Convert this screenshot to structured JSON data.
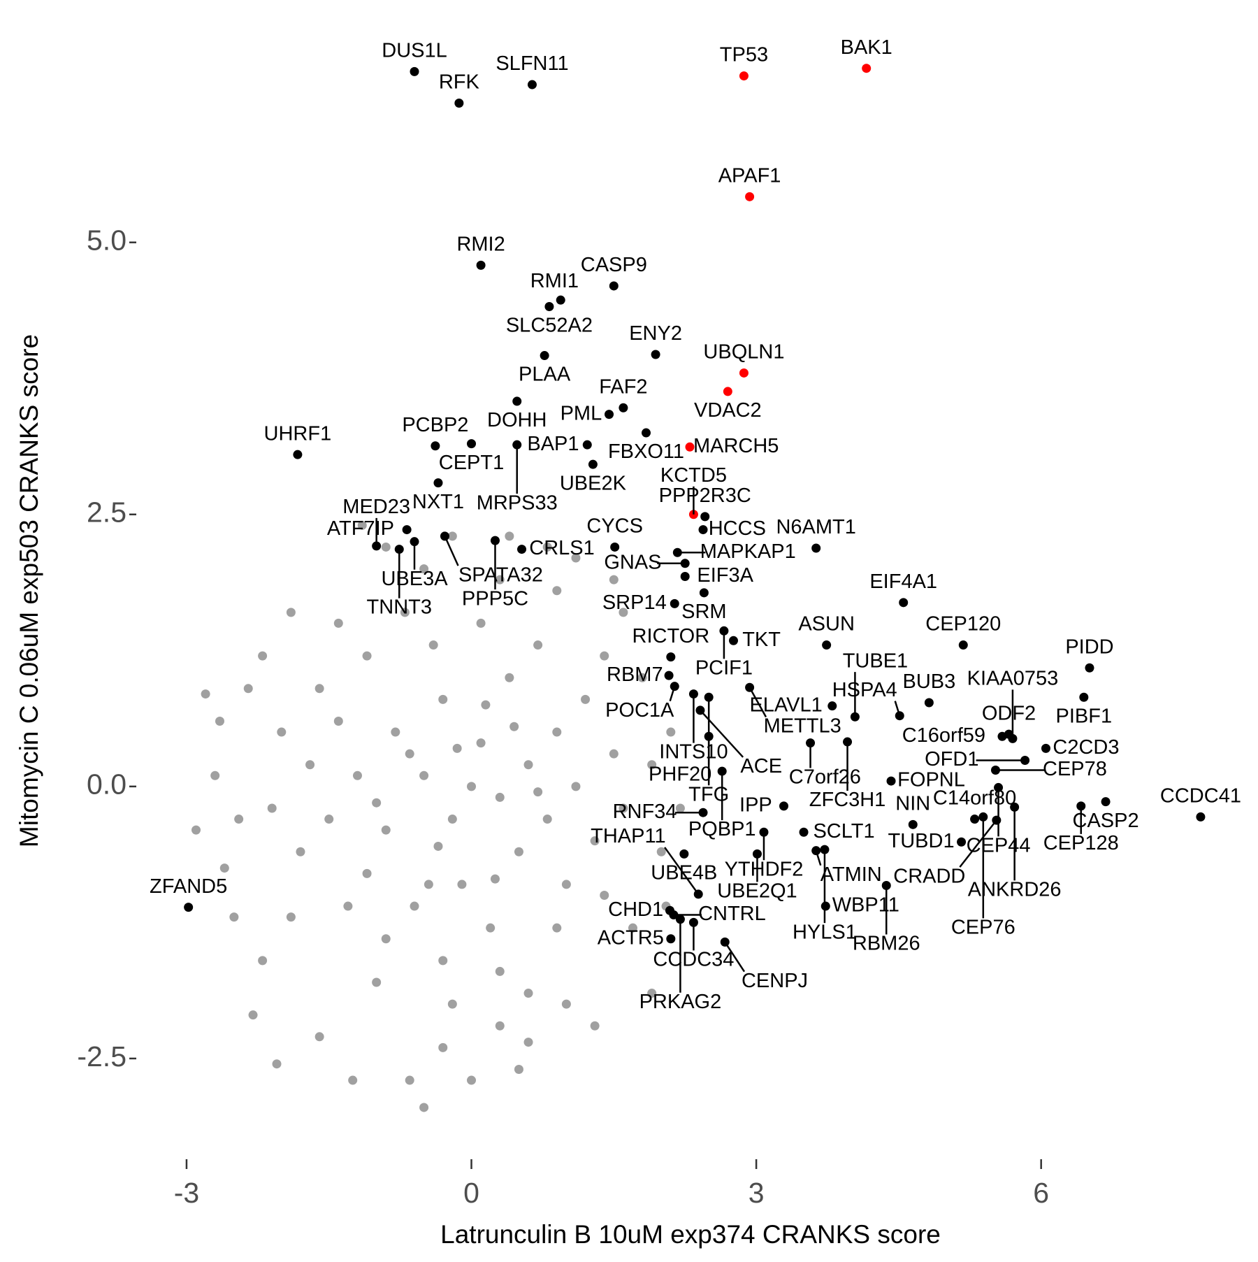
{
  "chart_data": {
    "type": "scatter",
    "x_label": "Latrunculin B 10uM exp374 CRANKS score",
    "y_label": "Mitomycin C 0.06uM exp503 CRANKS score",
    "xlim": [
      -3.5,
      8.1
    ],
    "ylim": [
      -3.4,
      6.9
    ],
    "xticks": [
      -3,
      0,
      3,
      6
    ],
    "yticks": [
      {
        "value": -2.5,
        "label": "-2.5"
      },
      {
        "value": 0,
        "label": "0.0"
      },
      {
        "value": 2.5,
        "label": "2.5"
      },
      {
        "value": 5,
        "label": "5.0"
      }
    ],
    "series": [
      {
        "color": "#a0a0a0",
        "x": [
          -0.5,
          -0.2,
          0.1,
          0.3,
          -0.8,
          -0.9,
          0.6,
          0.5,
          -0.3,
          -0.1,
          0.9,
          0.8,
          -1.2,
          -1.1,
          -0.6,
          0.2,
          0.4,
          -0.4,
          1.1,
          1.0,
          -1.4,
          -1.5,
          -0.7,
          0.1,
          0.7,
          1.2,
          1.3,
          0.9,
          0.3,
          -0.3,
          -0.9,
          -1.3,
          -1.6,
          -1.8,
          -1.7,
          1.5,
          1.4,
          0.6,
          -0.2,
          -1.0,
          -0.5,
          0.3,
          0.9,
          1.4,
          1.6,
          -2.0,
          -2.1,
          -1.9,
          -1.4,
          -1.1,
          0.0,
          -0.35,
          0.15,
          -0.65,
          0.45,
          -0.15,
          0.7,
          -1.0,
          0.25,
          -0.45,
          -2.8,
          -2.65,
          -2.45,
          -2.2,
          -2.3,
          -2.05,
          -1.25,
          -0.65,
          -0.5,
          -0.3,
          0.3,
          0.6,
          1.3,
          1.9,
          -2.6,
          -2.7,
          -2.35,
          -1.15,
          -0.9,
          0.4,
          0.8,
          1.1,
          1.6,
          1.8,
          1.9,
          2.0,
          1.7,
          2.1,
          2.2,
          -2.2,
          -2.9,
          -2.5,
          1.0,
          0.0,
          -1.6,
          -1.9,
          2.05,
          1.5,
          -0.2,
          0.5
        ],
        "y": [
          0.1,
          -0.3,
          0.4,
          -0.1,
          0.5,
          -0.4,
          0.2,
          -0.6,
          0.8,
          -0.9,
          0.5,
          -0.3,
          0.1,
          -0.8,
          -1.1,
          -1.3,
          1.0,
          1.3,
          0.0,
          -0.9,
          0.6,
          -0.3,
          1.6,
          1.5,
          1.3,
          0.8,
          -0.5,
          -1.3,
          -1.7,
          -1.6,
          -1.4,
          -1.1,
          0.9,
          -0.6,
          0.2,
          0.3,
          -1.0,
          -1.9,
          -2.0,
          -1.8,
          2.0,
          1.9,
          1.8,
          1.2,
          -0.2,
          0.5,
          -0.2,
          -1.2,
          1.5,
          1.2,
          0.0,
          -0.55,
          0.75,
          0.3,
          0.55,
          0.35,
          -0.05,
          -0.15,
          -0.85,
          -0.9,
          0.85,
          0.6,
          -0.3,
          -1.6,
          -2.1,
          -2.55,
          -2.7,
          -2.7,
          -2.95,
          -2.4,
          -2.2,
          -2.35,
          -2.2,
          -1.9,
          -0.75,
          0.1,
          0.9,
          2.4,
          2.2,
          2.3,
          2.2,
          2.1,
          1.6,
          1.0,
          0.2,
          -0.6,
          -1.3,
          0.5,
          -0.2,
          1.2,
          -0.4,
          -1.2,
          -2.0,
          -2.7,
          -2.3,
          1.6,
          -1.1,
          1.9,
          2.3,
          -2.6
        ]
      },
      {
        "color": "#000000",
        "labels": [
          "DUS1L",
          "SLFN11",
          "RFK",
          "RMI2",
          "CASP9",
          "RMI1",
          "SLC52A2",
          "PLAA",
          "ENY2",
          "DOHH",
          "PML",
          "FAF2",
          "CEPT1",
          "MRPS33",
          "BAP1",
          "FBXO11",
          "PCBP2",
          "UHRF1",
          "UBE2K",
          "NXT1",
          "HCCS",
          "PPP2R3C",
          "SRM",
          "PCIF1",
          "TKT",
          "N6AMT1",
          "EIF4A1",
          "ATF7IP",
          "UBE3A",
          "MED23",
          "TNNT3",
          "SPATA32",
          "CRLS1",
          "PPP5C",
          "CYCS",
          "MAPKAP1",
          "GNAS",
          "SRP14",
          "EIF3A",
          "ASUN",
          "CEP120",
          "PIDD",
          "ODF2",
          "PIBF1",
          "C16orf59",
          "KIAA0753",
          "BUB3",
          "HSPA4",
          "ELAVL1",
          "METTL3",
          "RICTOR",
          "RBM7",
          "POC1A",
          "INTS10",
          "PHF20",
          "ACE",
          "C7orf26",
          "TUBE1",
          "TFG",
          "ZFC3H1",
          "FOPNL",
          "CEP78",
          "CEP44",
          "ANKRD26",
          "C2CD3",
          "OFD1",
          "CASP2",
          "CEP128",
          "CCDC41",
          "PQBP1",
          "IPP",
          "NIN",
          "CEP76",
          "CRADD",
          "RNF34",
          "YTHDF2",
          "SCLT1",
          "ATMIN",
          "UBE4B",
          "UBE2Q1",
          "C14orf80",
          "TUBD1",
          "HYLS1",
          "WBP11",
          "RBM26",
          "CHD1",
          "CNTRL",
          "CCDC34",
          "PRKAG2",
          "THAP11",
          "ACTR5",
          "CENPJ",
          "ZFAND5"
        ],
        "x": [
          -0.6,
          0.64,
          -0.13,
          0.1,
          1.5,
          0.94,
          0.82,
          0.77,
          1.94,
          0.48,
          1.45,
          1.6,
          0.0,
          0.48,
          1.22,
          1.84,
          -0.38,
          -1.83,
          1.28,
          -0.35,
          2.44,
          2.46,
          2.45,
          2.66,
          2.76,
          3.63,
          4.55,
          -0.68,
          -0.6,
          -1.0,
          -0.76,
          -0.28,
          0.53,
          0.25,
          1.51,
          2.17,
          2.25,
          2.14,
          2.25,
          3.74,
          5.18,
          6.51,
          5.66,
          6.45,
          5.59,
          5.7,
          4.82,
          4.51,
          3.8,
          2.93,
          2.1,
          2.08,
          2.14,
          2.34,
          2.5,
          2.41,
          3.57,
          4.04,
          2.5,
          3.96,
          4.42,
          5.52,
          5.55,
          5.72,
          6.05,
          5.83,
          6.68,
          6.42,
          7.68,
          2.64,
          3.29,
          4.65,
          5.39,
          5.53,
          2.44,
          3.08,
          3.5,
          3.63,
          2.24,
          3.01,
          5.3,
          5.16,
          3.72,
          3.73,
          4.37,
          2.09,
          2.13,
          2.34,
          2.2,
          2.39,
          2.1,
          2.67,
          -2.98
        ],
        "y": [
          6.57,
          6.45,
          6.28,
          4.79,
          4.6,
          4.47,
          4.41,
          3.96,
          3.97,
          3.54,
          3.42,
          3.48,
          3.15,
          3.14,
          3.14,
          3.25,
          3.13,
          3.05,
          2.96,
          2.79,
          2.36,
          2.48,
          1.78,
          1.43,
          1.34,
          2.19,
          1.69,
          2.36,
          2.25,
          2.21,
          2.18,
          2.3,
          2.18,
          2.26,
          2.2,
          2.15,
          2.05,
          1.68,
          1.93,
          1.3,
          1.3,
          1.09,
          0.48,
          0.82,
          0.46,
          0.44,
          0.77,
          0.65,
          0.74,
          0.91,
          1.19,
          1.02,
          0.92,
          0.85,
          0.82,
          0.7,
          0.4,
          0.64,
          0.46,
          0.41,
          0.05,
          0.15,
          -0.01,
          -0.19,
          0.35,
          0.24,
          -0.14,
          -0.18,
          -0.28,
          0.14,
          -0.18,
          -0.35,
          -0.28,
          -0.31,
          -0.24,
          -0.42,
          -0.42,
          -0.59,
          -0.62,
          -0.62,
          -0.3,
          -0.51,
          -0.58,
          -1.1,
          -0.91,
          -1.14,
          -1.18,
          -1.25,
          -1.22,
          -0.99,
          -1.4,
          -1.43,
          -1.11
        ]
      },
      {
        "color": "#ff0000",
        "labels": [
          "TP53",
          "BAK1",
          "APAF1",
          "UBQLN1",
          "VDAC2",
          "MARCH5",
          "KCTD5"
        ],
        "x": [
          2.87,
          4.16,
          2.93,
          2.87,
          2.7,
          2.3,
          2.34
        ],
        "y": [
          6.53,
          6.6,
          5.42,
          3.8,
          3.63,
          3.12,
          2.5
        ]
      }
    ]
  }
}
